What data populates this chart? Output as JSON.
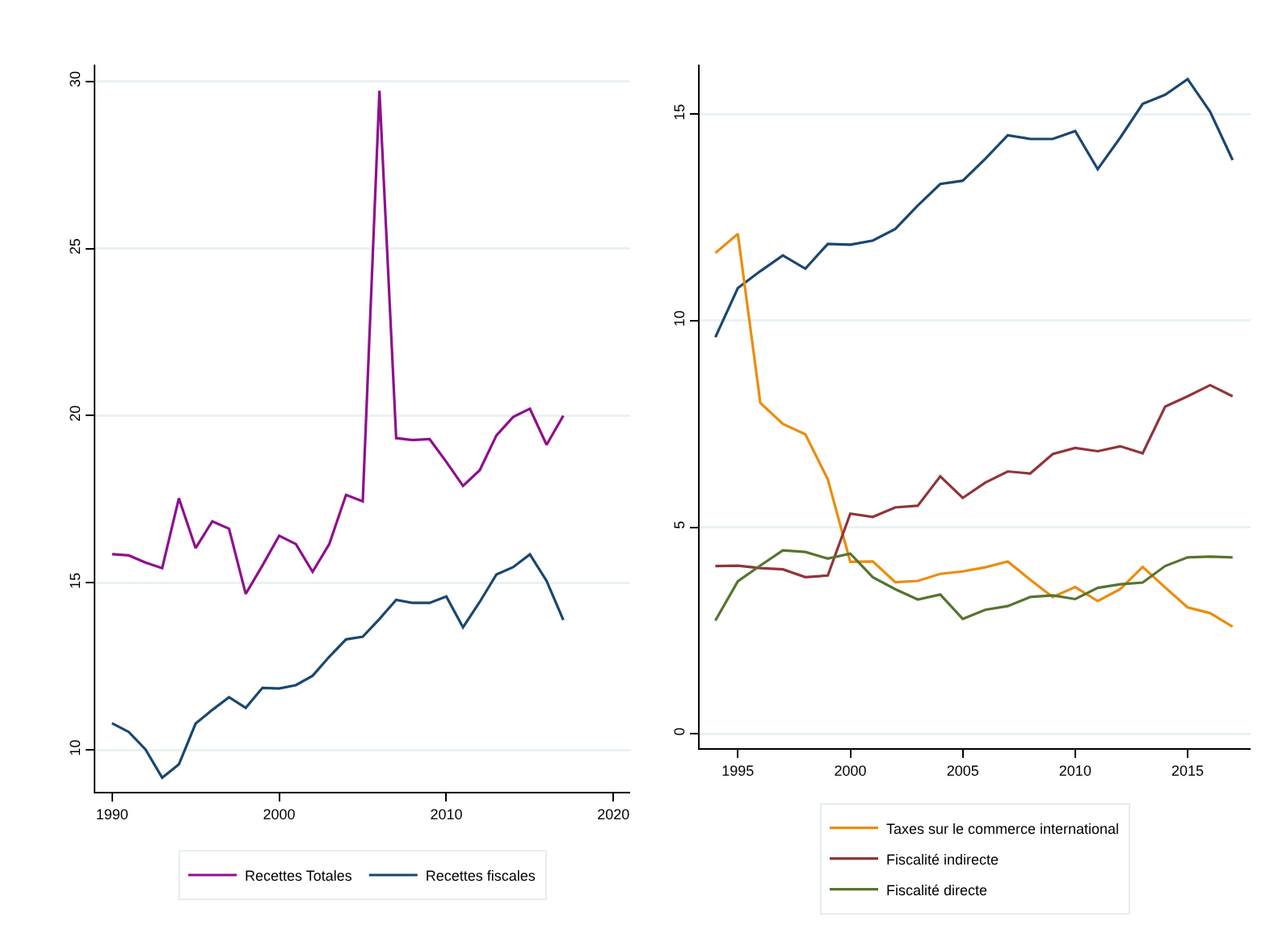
{
  "chart_data": [
    {
      "type": "line",
      "x": [
        1990,
        1991,
        1992,
        1993,
        1994,
        1995,
        1996,
        1997,
        1998,
        1999,
        2000,
        2001,
        2002,
        2003,
        2004,
        2005,
        2006,
        2007,
        2008,
        2009,
        2010,
        2011,
        2012,
        2013,
        2014,
        2015,
        2016,
        2017
      ],
      "series": [
        {
          "name": "Recettes Totales",
          "color": "#8e0f8e",
          "values": [
            15.86,
            15.82,
            15.61,
            15.44,
            17.53,
            16.04,
            16.84,
            16.62,
            14.67,
            15.52,
            16.41,
            16.16,
            15.33,
            16.16,
            17.63,
            17.44,
            29.72,
            19.33,
            19.27,
            19.3,
            18.62,
            17.9,
            18.37,
            19.41,
            19.96,
            20.21,
            19.13,
            20.0
          ]
        },
        {
          "name": "Recettes fiscales",
          "color": "#1a476f",
          "values": [
            10.8,
            10.54,
            10.02,
            9.17,
            9.57,
            10.79,
            11.2,
            11.58,
            11.26,
            11.86,
            11.84,
            11.94,
            12.22,
            12.79,
            13.31,
            13.39,
            13.92,
            14.49,
            14.4,
            14.4,
            14.59,
            13.67,
            14.43,
            15.25,
            15.47,
            15.85,
            15.06,
            13.89
          ]
        }
      ],
      "xlim": [
        1989,
        2021
      ],
      "xticks": [
        1990,
        2000,
        2010,
        2020
      ],
      "ylim": [
        8.75,
        30.5
      ],
      "yticks": [
        10,
        15,
        20,
        25,
        30
      ],
      "grid": "y",
      "legend": "bottom",
      "marker": "none",
      "line_style": "solid"
    },
    {
      "type": "line",
      "x": [
        1994,
        1995,
        1996,
        1997,
        1998,
        1999,
        2000,
        2001,
        2002,
        2003,
        2004,
        2005,
        2006,
        2007,
        2008,
        2009,
        2010,
        2011,
        2012,
        2013,
        2014,
        2015,
        2016,
        2017
      ],
      "series": [
        {
          "color": "#1a476f",
          "values": [
            9.6,
            10.79,
            11.2,
            11.58,
            11.26,
            11.86,
            11.84,
            11.94,
            12.22,
            12.79,
            13.31,
            13.39,
            13.92,
            14.49,
            14.4,
            14.4,
            14.59,
            13.67,
            14.43,
            15.25,
            15.47,
            15.85,
            15.06,
            13.89
          ]
        },
        {
          "name": "Taxes sur le commerce international",
          "color": "#ec8c0c",
          "values": [
            11.64,
            12.1,
            8.01,
            7.5,
            7.25,
            6.16,
            4.16,
            4.17,
            3.67,
            3.7,
            3.87,
            3.93,
            4.03,
            4.17,
            3.73,
            3.31,
            3.55,
            3.21,
            3.5,
            4.04,
            3.54,
            3.06,
            2.92,
            2.59
          ]
        },
        {
          "name": "Fiscalité indirecte",
          "color": "#90353b",
          "values": [
            4.06,
            4.07,
            4.01,
            3.98,
            3.79,
            3.83,
            5.33,
            5.25,
            5.48,
            5.52,
            6.23,
            5.71,
            6.08,
            6.35,
            6.3,
            6.77,
            6.92,
            6.84,
            6.96,
            6.79,
            7.92,
            8.17,
            8.44,
            8.17
          ]
        },
        {
          "name": "Fiscalité directe",
          "color": "#55752f",
          "values": [
            2.74,
            3.69,
            4.07,
            4.44,
            4.4,
            4.24,
            4.36,
            3.79,
            3.5,
            3.25,
            3.37,
            2.78,
            3.0,
            3.09,
            3.31,
            3.35,
            3.26,
            3.53,
            3.62,
            3.66,
            4.06,
            4.27,
            4.29,
            4.27
          ]
        }
      ],
      "xlim": [
        1993.3,
        2017.8
      ],
      "xticks": [
        1995,
        2000,
        2005,
        2010,
        2015
      ],
      "ylim": [
        -0.35,
        16.2
      ],
      "yticks": [
        0,
        5,
        10,
        15
      ],
      "grid": "y",
      "legend": "bottom",
      "marker": "none",
      "line_style": "solid"
    }
  ]
}
